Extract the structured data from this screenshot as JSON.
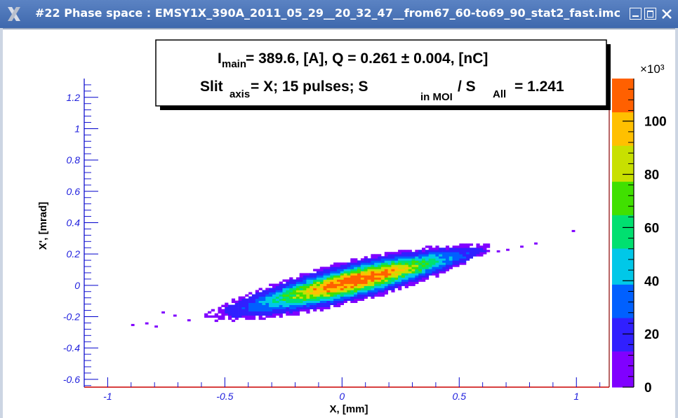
{
  "window": {
    "title": "#22 Phase space : EMSY1X_390A_2011_05_29__20_32_47__from67_60-to69_90_stat2_fast.imc",
    "buttons": [
      "minimize",
      "maximize",
      "close"
    ],
    "titlebar_color": "#4a74b8"
  },
  "chart_data": {
    "type": "heatmap",
    "xlabel": "X, [mm]",
    "ylabel": "X', [mrad]",
    "xlim": [
      -1.1,
      1.14
    ],
    "ylim": [
      -0.65,
      1.32
    ],
    "x_ticks": [
      "-1",
      "-0.5",
      "0",
      "0.5",
      "1"
    ],
    "x_tick_values": [
      -1,
      -0.5,
      0,
      0.5,
      1
    ],
    "y_ticks": [
      "-0.6",
      "-0.4",
      "-0.2",
      "0",
      "0.2",
      "0.4",
      "0.6",
      "0.8",
      "1",
      "1.2"
    ],
    "y_tick_values": [
      -0.6,
      -0.4,
      -0.2,
      0,
      0.2,
      0.4,
      0.6,
      0.8,
      1,
      1.2
    ],
    "colorbar": {
      "ticks": [
        "0",
        "20",
        "40",
        "60",
        "80",
        "100"
      ],
      "tick_values": [
        0,
        20,
        40,
        60,
        80,
        100
      ],
      "max": 116,
      "multiplier": "×10³",
      "colors": [
        "#8000ff",
        "#3020ff",
        "#0060ff",
        "#00c8e8",
        "#00e070",
        "#40e000",
        "#c8e000",
        "#ffc000",
        "#ff6000",
        "#ff0000"
      ]
    },
    "info_box": {
      "line1": "I_main= 389.6, [A],  Q = 0.261   ± 0.004, [nC]",
      "line2": "Slit_axis= X;   15 pulses;    S_in MOI / S_All  =  1.241"
    },
    "distribution": {
      "description": "elongated beam spot along line X' ≈ 0.36·X + 0.005",
      "slope": 0.36,
      "intercept": 0.005,
      "x_core": [
        -0.62,
        0.58
      ],
      "peak_x": 0.05,
      "peak_y": 0.02,
      "outliers": [
        [
          -0.9,
          -0.26
        ],
        [
          -0.84,
          -0.25
        ],
        [
          -0.8,
          -0.27
        ],
        [
          -0.77,
          -0.18
        ],
        [
          -0.72,
          -0.2
        ],
        [
          -0.66,
          -0.23
        ],
        [
          0.66,
          0.21
        ],
        [
          0.7,
          0.22
        ],
        [
          0.76,
          0.24
        ],
        [
          0.82,
          0.26
        ],
        [
          0.98,
          0.34
        ]
      ]
    }
  }
}
